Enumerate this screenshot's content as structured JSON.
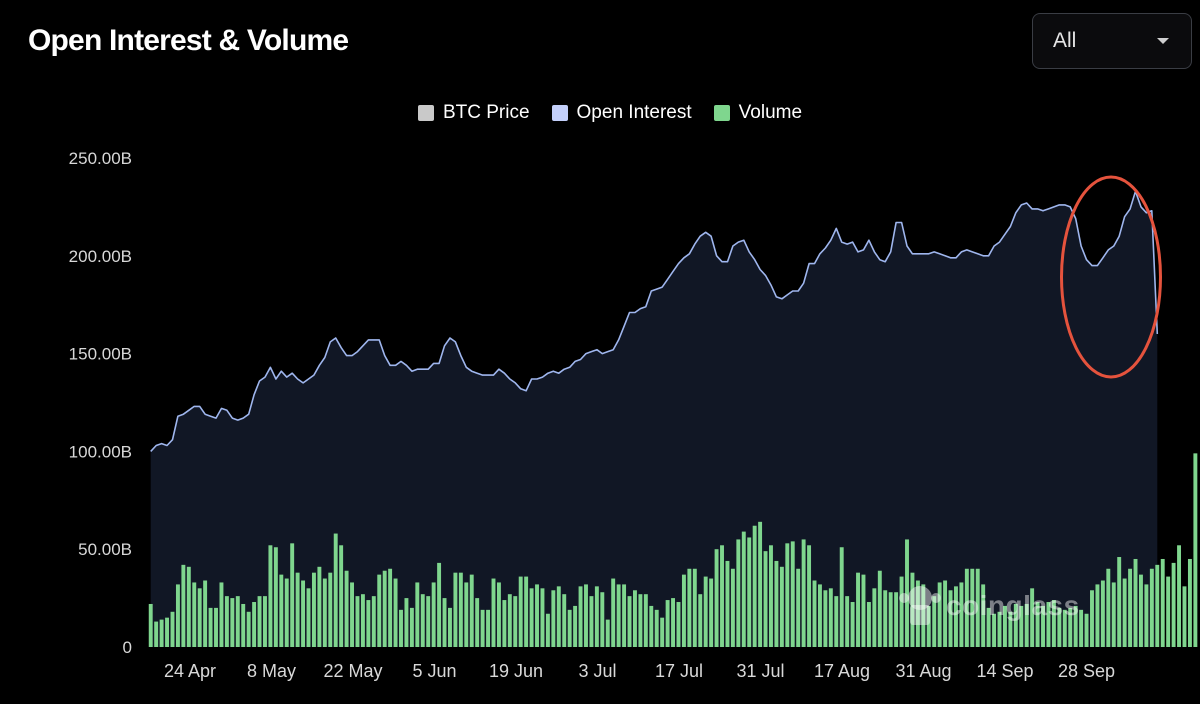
{
  "header": {
    "title": "Open Interest & Volume",
    "range_select": {
      "value": "All"
    }
  },
  "legend": [
    {
      "label": "BTC Price",
      "color": "#c9c9c9"
    },
    {
      "label": "Open Interest",
      "color": "#c3cffa"
    },
    {
      "label": "Volume",
      "color": "#7fd68e"
    }
  ],
  "watermark": "coinglass",
  "chart_data": {
    "type": "line+bar",
    "y_ticks": [
      "250.00B",
      "200.00B",
      "150.00B",
      "100.00B",
      "50.00B",
      "0"
    ],
    "ylim": [
      0,
      250
    ],
    "x_ticks": [
      "24 Apr",
      "8 May",
      "22 May",
      "5 Jun",
      "19 Jun",
      "3 Jul",
      "17 Jul",
      "31 Jul",
      "17 Aug",
      "31 Aug",
      "14 Sep",
      "28 Sep"
    ],
    "annotation": {
      "type": "ellipse",
      "color": "#e5533d",
      "target": "open_interest",
      "x_range": [
        172,
        181
      ]
    },
    "series": [
      {
        "name": "Open Interest",
        "type": "area-line",
        "color": "#9fb6ee",
        "values": [
          100,
          103,
          104,
          103,
          106,
          118,
          119,
          121,
          123,
          123,
          119,
          118,
          117,
          122,
          121,
          117,
          116,
          117,
          119,
          129,
          136,
          138,
          143,
          137,
          141,
          138,
          140,
          137,
          135,
          137,
          139,
          144,
          148,
          156,
          158,
          153,
          149,
          149,
          151,
          154,
          157,
          157,
          157,
          149,
          144,
          144,
          146,
          144,
          141,
          142,
          142,
          142,
          145,
          145,
          154,
          158,
          156,
          149,
          143,
          141,
          140,
          139,
          139,
          139,
          142,
          140,
          137,
          135,
          132,
          131,
          137,
          137,
          138,
          140,
          141,
          140,
          142,
          143,
          146,
          147,
          150,
          151,
          152,
          150,
          151,
          152,
          157,
          164,
          171,
          171,
          173,
          174,
          182,
          183,
          184,
          188,
          192,
          196,
          199,
          201,
          206,
          210,
          212,
          210,
          200,
          197,
          197,
          205,
          207,
          208,
          202,
          198,
          193,
          190,
          185,
          179,
          178,
          180,
          182,
          182,
          186,
          196,
          196,
          201,
          204,
          208,
          214,
          207,
          206,
          207,
          202,
          203,
          208,
          202,
          198,
          197,
          202,
          217,
          217,
          205,
          201,
          201,
          201,
          201,
          202,
          201,
          200,
          199,
          199,
          202,
          203,
          202,
          201,
          200,
          200,
          205,
          207,
          211,
          215,
          222,
          226,
          227,
          224,
          224,
          223,
          224,
          225,
          226,
          226,
          225,
          219,
          205,
          198,
          195,
          195,
          199,
          203,
          205,
          210,
          220,
          224,
          233,
          225,
          222,
          223,
          160
        ]
      },
      {
        "name": "Volume",
        "type": "bar",
        "color": "#7fd68e",
        "values": [
          22,
          13,
          14,
          15,
          18,
          32,
          42,
          41,
          33,
          30,
          34,
          20,
          20,
          33,
          26,
          25,
          26,
          22,
          18,
          23,
          26,
          26,
          52,
          51,
          37,
          35,
          53,
          38,
          34,
          30,
          38,
          41,
          35,
          38,
          58,
          52,
          39,
          33,
          26,
          27,
          24,
          26,
          37,
          39,
          40,
          35,
          19,
          25,
          20,
          33,
          27,
          26,
          33,
          43,
          25,
          20,
          38,
          38,
          33,
          37,
          25,
          19,
          19,
          35,
          33,
          24,
          27,
          26,
          36,
          36,
          30,
          32,
          30,
          17,
          29,
          31,
          27,
          19,
          21,
          31,
          32,
          26,
          31,
          28,
          14,
          35,
          32,
          32,
          26,
          29,
          27,
          27,
          21,
          19,
          15,
          24,
          25,
          23,
          37,
          40,
          40,
          27,
          36,
          35,
          50,
          52,
          44,
          40,
          55,
          59,
          56,
          62,
          64,
          49,
          52,
          44,
          41,
          53,
          54,
          40,
          55,
          52,
          34,
          32,
          29,
          30,
          26,
          51,
          26,
          23,
          38,
          37,
          23,
          30,
          39,
          29,
          28,
          28,
          36,
          55,
          38,
          34,
          32,
          21,
          26,
          33,
          34,
          29,
          31,
          33,
          40,
          40,
          40,
          32,
          20,
          17,
          18,
          21,
          18,
          22,
          21,
          22,
          30,
          23,
          21,
          23,
          24,
          20,
          19,
          20,
          21,
          19,
          17,
          29,
          32,
          34,
          40,
          33,
          46,
          35,
          40,
          45,
          37,
          32,
          40,
          42,
          45,
          36,
          43,
          52,
          31,
          45,
          99
        ]
      }
    ]
  }
}
